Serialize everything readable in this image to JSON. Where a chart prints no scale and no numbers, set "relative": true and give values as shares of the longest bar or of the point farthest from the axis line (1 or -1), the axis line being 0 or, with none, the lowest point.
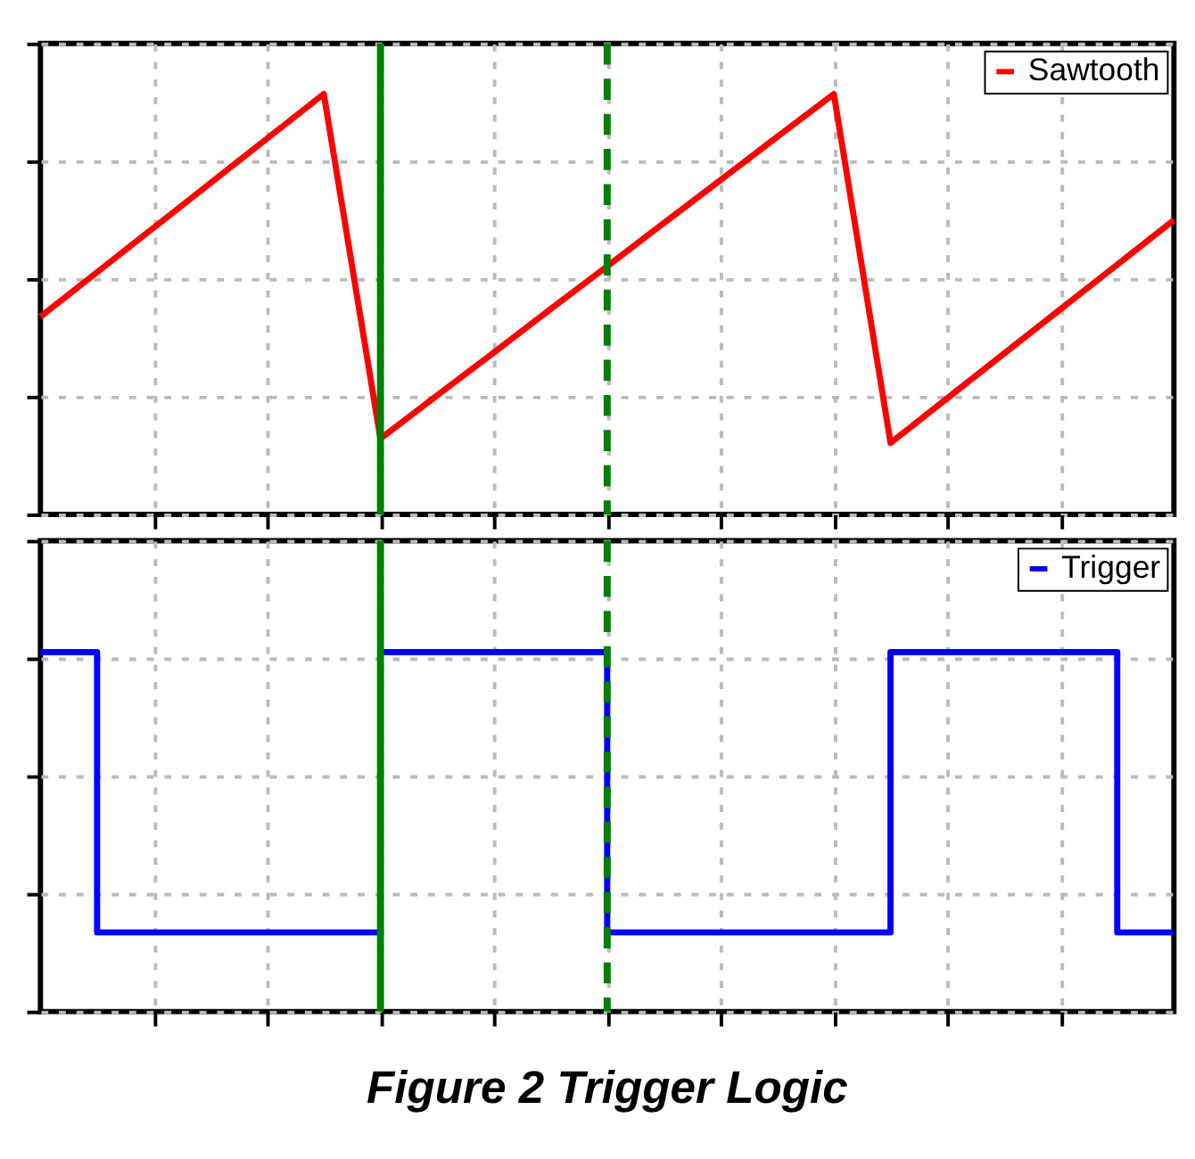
{
  "chart_data": [
    {
      "type": "line",
      "relative": true,
      "tick_labels": false,
      "grid": true,
      "legend": "top right",
      "categories": [
        null,
        null,
        null,
        null,
        null,
        null,
        null,
        null,
        null,
        null,
        null,
        null,
        null,
        null,
        null,
        null,
        null,
        null,
        null,
        null,
        null
      ],
      "series": [
        {
          "name": "Sawtooth",
          "color": "#ff0000",
          "values": [
            0.47,
            0.576,
            0.682,
            0.788,
            0.894,
            1,
            0.18,
            0.283,
            0.385,
            0.488,
            0.59,
            0.693,
            0.795,
            0.898,
            1,
            0.17,
            0.276,
            0.382,
            0.488,
            0.594,
            0.7
          ]
        }
      ]
    },
    {
      "type": "step",
      "relative": true,
      "tick_labels": false,
      "grid": true,
      "legend": "top right",
      "categories": [
        null,
        null,
        null,
        null,
        null,
        null,
        null,
        null,
        null,
        null,
        null,
        null,
        null,
        null,
        null,
        null,
        null,
        null,
        null,
        null,
        null
      ],
      "series": [
        {
          "name": "Trigger",
          "color": "#0000ff",
          "values": [
            1,
            0.22,
            0.22,
            0.22,
            0.22,
            0.22,
            1,
            1,
            1,
            1,
            0.22,
            0.22,
            0.22,
            0.22,
            0.22,
            1,
            1,
            1,
            1,
            0.22,
            0.22
          ]
        }
      ],
      "annotations": [
        "Figure 2  Trigger Logic"
      ]
    }
  ]
}
